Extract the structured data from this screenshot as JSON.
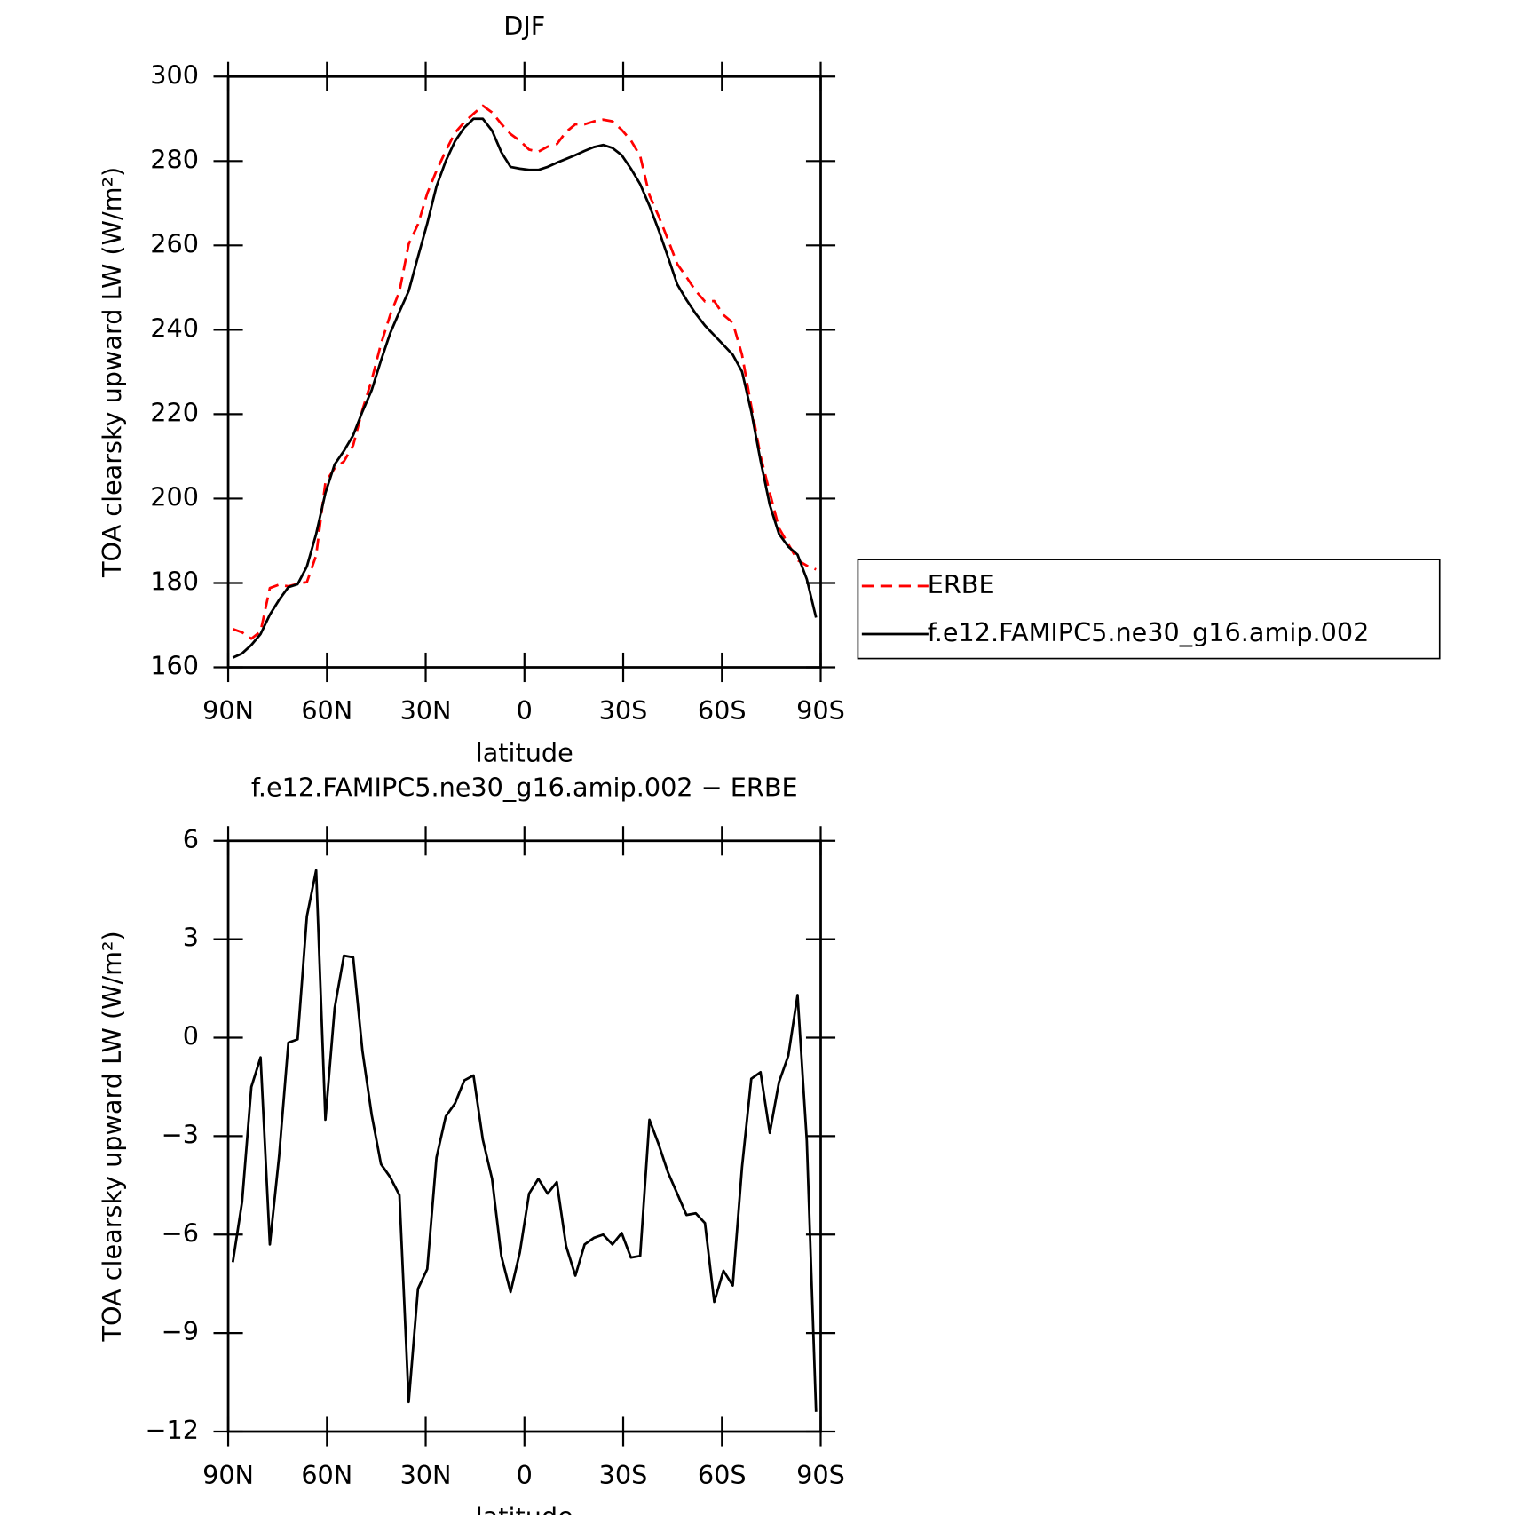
{
  "chart_data": [
    {
      "type": "line",
      "title": "DJF",
      "xlabel": "latitude",
      "ylabel": "TOA clearsky upward LW (W/m²)",
      "x": [
        88.59,
        85.78,
        82.97,
        80.16,
        77.34,
        74.53,
        71.72,
        68.91,
        66.09,
        63.28,
        60.47,
        57.66,
        54.84,
        52.03,
        49.22,
        46.41,
        43.59,
        40.78,
        37.97,
        35.16,
        32.34,
        29.53,
        26.72,
        23.91,
        21.09,
        18.28,
        15.47,
        12.66,
        9.84,
        7.03,
        4.22,
        1.41,
        -1.41,
        -4.22,
        -7.03,
        -9.84,
        -12.66,
        -15.47,
        -18.28,
        -21.09,
        -23.91,
        -26.72,
        -29.53,
        -32.34,
        -35.16,
        -37.97,
        -40.78,
        -43.59,
        -46.41,
        -49.22,
        -52.03,
        -54.84,
        -57.66,
        -60.47,
        -63.28,
        -66.09,
        -68.91,
        -71.72,
        -74.53,
        -77.34,
        -80.16,
        -82.97,
        -85.78,
        -88.59
      ],
      "series": [
        {
          "name": "ERBE",
          "color": "#ff0000",
          "linestyle": "dashed",
          "values": [
            169.1,
            168.3,
            166.8,
            168.5,
            178.8,
            179.6,
            179.2,
            179.8,
            180.2,
            186.5,
            203.8,
            207.2,
            208.8,
            212.6,
            221.0,
            228.1,
            236.6,
            243.5,
            249.1,
            260.3,
            265.0,
            272.3,
            277.7,
            282.4,
            286.7,
            289.2,
            291.2,
            293.1,
            291.5,
            288.8,
            286.4,
            284.8,
            282.7,
            282.2,
            283.4,
            284.0,
            286.9,
            288.7,
            288.7,
            289.4,
            289.8,
            289.4,
            287.4,
            284.9,
            281.2,
            271.9,
            266.9,
            261.4,
            255.6,
            252.5,
            249.2,
            246.7,
            246.8,
            243.5,
            241.7,
            234.1,
            221.9,
            210.1,
            201.4,
            193.0,
            189.2,
            185.4,
            184.1,
            183.2
          ]
        },
        {
          "name": "f.e12.FAMIPC5.ne30_g16.amip.002",
          "color": "#000000",
          "linestyle": "solid",
          "values": [
            162.3,
            163.3,
            165.3,
            167.9,
            172.5,
            176.0,
            179.0,
            179.7,
            183.9,
            191.6,
            201.3,
            208.1,
            211.3,
            215.0,
            220.6,
            225.7,
            232.7,
            239.2,
            244.3,
            249.2,
            257.3,
            265.2,
            274.0,
            280.0,
            284.7,
            287.9,
            290.0,
            290.0,
            287.2,
            282.1,
            278.6,
            278.2,
            277.9,
            277.9,
            278.6,
            279.6,
            280.5,
            281.4,
            282.4,
            283.3,
            283.8,
            283.1,
            281.4,
            278.2,
            274.5,
            269.4,
            263.6,
            257.3,
            250.8,
            247.1,
            243.8,
            241.0,
            238.7,
            236.4,
            234.1,
            230.1,
            220.6,
            209.0,
            198.5,
            191.6,
            188.6,
            186.7,
            180.9,
            171.8
          ]
        }
      ],
      "xlim": [
        90,
        -90
      ],
      "xticks": [
        {
          "value": 90,
          "label": "90N"
        },
        {
          "value": 60,
          "label": "60N"
        },
        {
          "value": 30,
          "label": "30N"
        },
        0,
        {
          "value": -30,
          "label": "30S"
        },
        {
          "value": -60,
          "label": "60S"
        },
        {
          "value": -90,
          "label": "90S"
        }
      ],
      "ylim": [
        160,
        300
      ],
      "yticks": [
        160,
        180,
        200,
        220,
        240,
        260,
        280,
        300
      ],
      "legend": "outside right"
    },
    {
      "type": "line",
      "title": "f.e12.FAMIPC5.ne30_g16.amip.002 − ERBE",
      "xlabel": "latitude",
      "ylabel": "TOA clearsky upward LW (W/m²)",
      "x": [
        88.59,
        85.78,
        82.97,
        80.16,
        77.34,
        74.53,
        71.72,
        68.91,
        66.09,
        63.28,
        60.47,
        57.66,
        54.84,
        52.03,
        49.22,
        46.41,
        43.59,
        40.78,
        37.97,
        35.16,
        32.34,
        29.53,
        26.72,
        23.91,
        21.09,
        18.28,
        15.47,
        12.66,
        9.84,
        7.03,
        4.22,
        1.41,
        -1.41,
        -4.22,
        -7.03,
        -9.84,
        -12.66,
        -15.47,
        -18.28,
        -21.09,
        -23.91,
        -26.72,
        -29.53,
        -32.34,
        -35.16,
        -37.97,
        -40.78,
        -43.59,
        -46.41,
        -49.22,
        -52.03,
        -54.84,
        -57.66,
        -60.47,
        -63.28,
        -66.09,
        -68.91,
        -71.72,
        -74.53,
        -77.34,
        -80.16,
        -82.97,
        -85.78,
        -88.59
      ],
      "values": [
        -6.84,
        -5.0,
        -1.5,
        -0.6,
        -6.3,
        -3.6,
        -0.15,
        -0.05,
        3.7,
        5.1,
        -2.5,
        0.9,
        2.5,
        2.45,
        -0.4,
        -2.35,
        -3.85,
        -4.25,
        -4.8,
        -11.1,
        -7.65,
        -7.05,
        -3.65,
        -2.4,
        -2.0,
        -1.3,
        -1.15,
        -3.1,
        -4.3,
        -6.65,
        -7.75,
        -6.55,
        -4.75,
        -4.3,
        -4.75,
        -4.4,
        -6.35,
        -7.25,
        -6.3,
        -6.1,
        -6.0,
        -6.3,
        -5.95,
        -6.7,
        -6.65,
        -2.5,
        -3.25,
        -4.1,
        -4.75,
        -5.4,
        -5.35,
        -5.65,
        -8.05,
        -7.1,
        -7.55,
        -3.95,
        -1.25,
        -1.05,
        -2.9,
        -1.35,
        -0.55,
        1.3,
        -3.15,
        -11.4
      ],
      "color": "#000000",
      "xlim": [
        90,
        -90
      ],
      "xticks": [
        {
          "value": 90,
          "label": "90N"
        },
        {
          "value": 60,
          "label": "60N"
        },
        {
          "value": 30,
          "label": "30N"
        },
        0,
        {
          "value": -30,
          "label": "30S"
        },
        {
          "value": -60,
          "label": "60S"
        },
        {
          "value": -90,
          "label": "90S"
        }
      ],
      "ylim": [
        -12,
        6
      ],
      "yticks": [
        {
          "value": -12,
          "label": "−12"
        },
        {
          "value": -9,
          "label": "−9"
        },
        {
          "value": -6,
          "label": "−6"
        },
        {
          "value": -3,
          "label": "−3"
        },
        0,
        3,
        6
      ]
    }
  ]
}
